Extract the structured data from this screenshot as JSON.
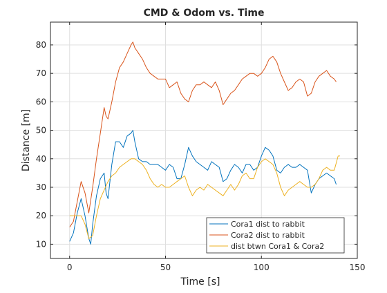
{
  "chart_data": {
    "type": "line",
    "title": "CMD & Odom vs. Time",
    "xlabel": "Time [s]",
    "ylabel": "Distance [m]",
    "xlim": [
      -10,
      150
    ],
    "ylim": [
      5,
      88
    ],
    "xticks": [
      0,
      50,
      100,
      150
    ],
    "yticks": [
      10,
      20,
      30,
      40,
      50,
      60,
      70,
      80
    ],
    "grid": true,
    "legend_position": "bottom-right",
    "series": [
      {
        "name": "Cora1 dist to rabbit",
        "color": "#0072BD",
        "x": [
          0,
          2,
          4,
          6,
          8,
          10,
          11,
          12,
          14,
          16,
          18,
          19,
          20,
          22,
          24,
          26,
          28,
          30,
          32,
          33,
          34,
          36,
          38,
          40,
          42,
          44,
          46,
          48,
          50,
          52,
          54,
          56,
          58,
          60,
          62,
          64,
          66,
          68,
          70,
          72,
          74,
          76,
          78,
          80,
          82,
          84,
          86,
          88,
          90,
          92,
          94,
          96,
          98,
          100,
          102,
          104,
          106,
          108,
          110,
          112,
          114,
          116,
          118,
          120,
          122,
          124,
          126,
          128,
          130,
          132,
          134,
          136,
          138,
          139
        ],
        "y": [
          11,
          14,
          21,
          26,
          20,
          12,
          10,
          17,
          27,
          33,
          35,
          28,
          26,
          38,
          46,
          46,
          44,
          48,
          49,
          50,
          46,
          40,
          39,
          39,
          38,
          38,
          38,
          37,
          36,
          38,
          37,
          33,
          33,
          38,
          44,
          41,
          39,
          38,
          37,
          36,
          39,
          38,
          37,
          32,
          33,
          36,
          38,
          37,
          35,
          38,
          38,
          36,
          37,
          41,
          44,
          43,
          41,
          36,
          35,
          37,
          38,
          37,
          37,
          38,
          37,
          36,
          28,
          31,
          33,
          34,
          35,
          34,
          33,
          31
        ]
      },
      {
        "name": "Cora2 dist to rabbit",
        "color": "#D95319",
        "x": [
          0,
          2,
          4,
          6,
          8,
          10,
          12,
          14,
          16,
          18,
          19,
          20,
          22,
          24,
          26,
          28,
          30,
          32,
          33,
          34,
          36,
          38,
          40,
          42,
          44,
          46,
          48,
          50,
          52,
          54,
          56,
          58,
          60,
          62,
          64,
          66,
          68,
          70,
          72,
          74,
          76,
          78,
          80,
          82,
          84,
          86,
          88,
          90,
          92,
          94,
          96,
          98,
          100,
          102,
          104,
          106,
          108,
          110,
          112,
          114,
          116,
          118,
          120,
          122,
          124,
          126,
          128,
          130,
          132,
          134,
          136,
          138,
          139
        ],
        "y": [
          16,
          18,
          25,
          32,
          28,
          21,
          30,
          40,
          49,
          58,
          55,
          54,
          60,
          67,
          72,
          74,
          77,
          80,
          81,
          79,
          77,
          75,
          72,
          70,
          69,
          68,
          68,
          68,
          65,
          66,
          67,
          63,
          61,
          60,
          64,
          66,
          66,
          67,
          66,
          65,
          67,
          64,
          59,
          61,
          63,
          64,
          66,
          68,
          69,
          70,
          70,
          69,
          70,
          72,
          75,
          76,
          74,
          70,
          67,
          64,
          65,
          67,
          68,
          67,
          62,
          63,
          67,
          69,
          70,
          71,
          69,
          68,
          67
        ]
      },
      {
        "name": "dist btwn Cora1 & Cora2",
        "color": "#EDB120",
        "x": [
          0,
          2,
          4,
          6,
          8,
          10,
          12,
          14,
          16,
          18,
          20,
          22,
          24,
          26,
          28,
          30,
          32,
          34,
          36,
          38,
          40,
          42,
          44,
          46,
          48,
          50,
          52,
          54,
          56,
          58,
          60,
          62,
          64,
          66,
          68,
          70,
          72,
          74,
          76,
          78,
          80,
          82,
          84,
          86,
          88,
          90,
          92,
          94,
          96,
          98,
          100,
          102,
          104,
          106,
          108,
          110,
          112,
          114,
          116,
          118,
          120,
          122,
          124,
          126,
          128,
          130,
          132,
          134,
          136,
          138,
          140,
          141
        ],
        "y": [
          20,
          20,
          20,
          20,
          17,
          12,
          13,
          20,
          26,
          29,
          32,
          34,
          35,
          37,
          38,
          39,
          40,
          40,
          39,
          38,
          36,
          33,
          31,
          30,
          31,
          30,
          30,
          31,
          32,
          33,
          34,
          30,
          27,
          29,
          30,
          29,
          31,
          30,
          29,
          28,
          27,
          29,
          31,
          29,
          31,
          34,
          35,
          33,
          33,
          37,
          39,
          40,
          39,
          38,
          35,
          30,
          27,
          29,
          30,
          31,
          32,
          31,
          30,
          30,
          31,
          33,
          36,
          37,
          36,
          36,
          41,
          41
        ]
      }
    ]
  }
}
